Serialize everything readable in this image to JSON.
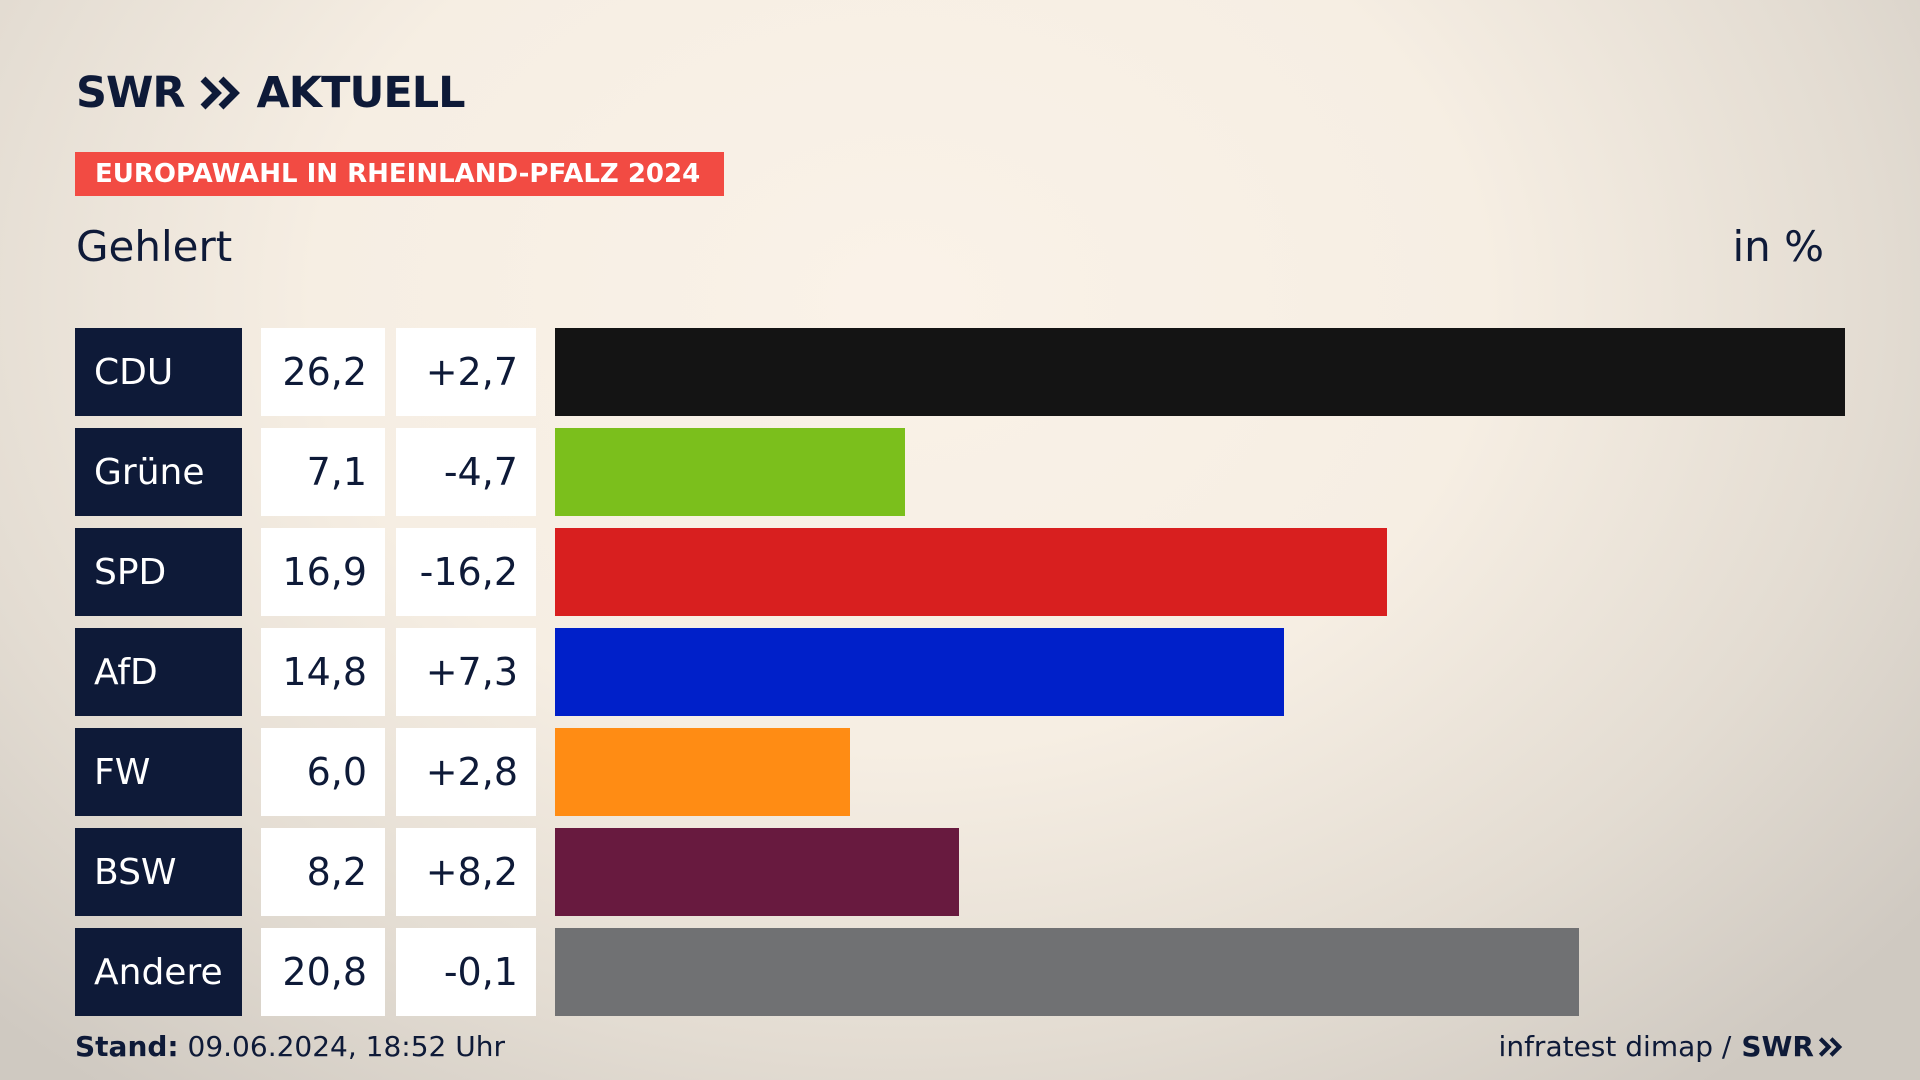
{
  "brand": {
    "name": "SWR",
    "product": "AKTUELL"
  },
  "banner": "EUROPAWAHL IN RHEINLAND-PFALZ 2024",
  "subtitle": "Gehlert",
  "unit": "in %",
  "colors": {
    "navy": "#0e1a38",
    "banner": "#f24b43"
  },
  "chart_data": {
    "type": "bar",
    "orientation": "horizontal",
    "xlim": [
      0,
      26.2
    ],
    "categories": [
      "CDU",
      "Grüne",
      "SPD",
      "AfD",
      "FW",
      "BSW",
      "Andere"
    ],
    "series": [
      {
        "values": [
          26.2,
          7.1,
          16.9,
          14.8,
          6.0,
          8.2,
          20.8
        ]
      }
    ],
    "value_labels": [
      "26,2",
      "7,1",
      "16,9",
      "14,8",
      "6,0",
      "8,2",
      "20,8"
    ],
    "diff_labels": [
      "+2,7",
      "-4,7",
      "-16,2",
      "+7,3",
      "+2,8",
      "+8,2",
      "-0,1"
    ],
    "bar_colors": [
      "#141414",
      "#7bbf1c",
      "#d81f1f",
      "#0020c9",
      "#ff8c14",
      "#681a3f",
      "#707173"
    ]
  },
  "footer": {
    "stand_label": "Stand:",
    "stand_value": "09.06.2024, 18:52 Uhr",
    "source": "infratest dimap /",
    "source_brand": "SWR"
  }
}
